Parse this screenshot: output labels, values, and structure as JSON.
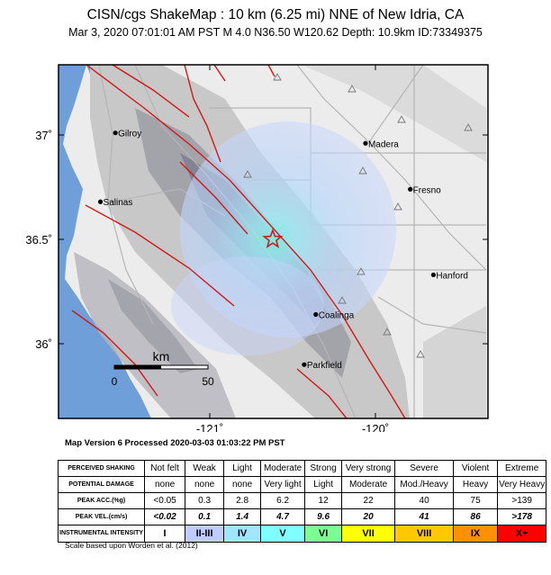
{
  "header": {
    "title": "CISN/cgs ShakeMap : 10 km (6.25 mi) NNE of New Idria, CA",
    "subtitle": "Mar  3, 2020 07:01:01 AM PST   M 4.0   N36.50 W120.62   Depth: 10.9km   ID:73349375"
  },
  "map": {
    "lat_labels": [
      "37˚",
      "36.5˚",
      "36˚"
    ],
    "lon_labels": [
      "-121˚",
      "-120˚"
    ],
    "cities": [
      {
        "name": "Gilroy",
        "lat": 37.01,
        "lon": -121.57
      },
      {
        "name": "Madera",
        "lat": 36.96,
        "lon": -120.06
      },
      {
        "name": "Salinas",
        "lat": 36.68,
        "lon": -121.66
      },
      {
        "name": "Fresno",
        "lat": 36.74,
        "lon": -119.79
      },
      {
        "name": "Hanford",
        "lat": 36.33,
        "lon": -119.65
      },
      {
        "name": "Coalinga",
        "lat": 36.14,
        "lon": -120.36
      },
      {
        "name": "Parkfield",
        "lat": 35.9,
        "lon": -120.43
      }
    ],
    "epicenter": {
      "lat": 36.5,
      "lon": -120.62
    },
    "scale_bar": {
      "unit": "km",
      "start": "0",
      "end": "50"
    },
    "colors": {
      "ocean": "#6f9fd8",
      "fault": "#d01818",
      "epicenter": "#c82020"
    }
  },
  "footer": {
    "version": "Map Version 6 Processed 2020-03-03 01:03:22 PM PST",
    "scale_note": "Scale based upon Worden et al. (2012)"
  },
  "legend": {
    "shaking_head": "PERCEIVED SHAKING",
    "damage_head": "POTENTIAL DAMAGE",
    "acc_head": "PEAK ACC.(%g)",
    "vel_head": "PEAK VEL.(cm/s)",
    "mmi_head": "INSTRUMENTAL INTENSITY",
    "shaking": [
      "Not felt",
      "Weak",
      "Light",
      "Moderate",
      "Strong",
      "Very strong",
      "Severe",
      "Violent",
      "Extreme"
    ],
    "damage": [
      "none",
      "none",
      "none",
      "Very light",
      "Light",
      "Moderate",
      "Mod./Heavy",
      "Heavy",
      "Very Heavy"
    ],
    "acc": [
      "<0.05",
      "0.3",
      "2.8",
      "6.2",
      "12",
      "22",
      "40",
      "75",
      ">139"
    ],
    "vel": [
      "<0.02",
      "0.1",
      "1.4",
      "4.7",
      "9.6",
      "20",
      "41",
      "86",
      ">178"
    ],
    "mmi": [
      "I",
      "II-III",
      "IV",
      "V",
      "VI",
      "VII",
      "VIII",
      "IX",
      "X+"
    ],
    "mmi_colors": [
      "#ffffff",
      "#bfccff",
      "#a0e6ff",
      "#80ffff",
      "#7aff93",
      "#ffff00",
      "#ffc800",
      "#ff9100",
      "#ff0000"
    ]
  }
}
